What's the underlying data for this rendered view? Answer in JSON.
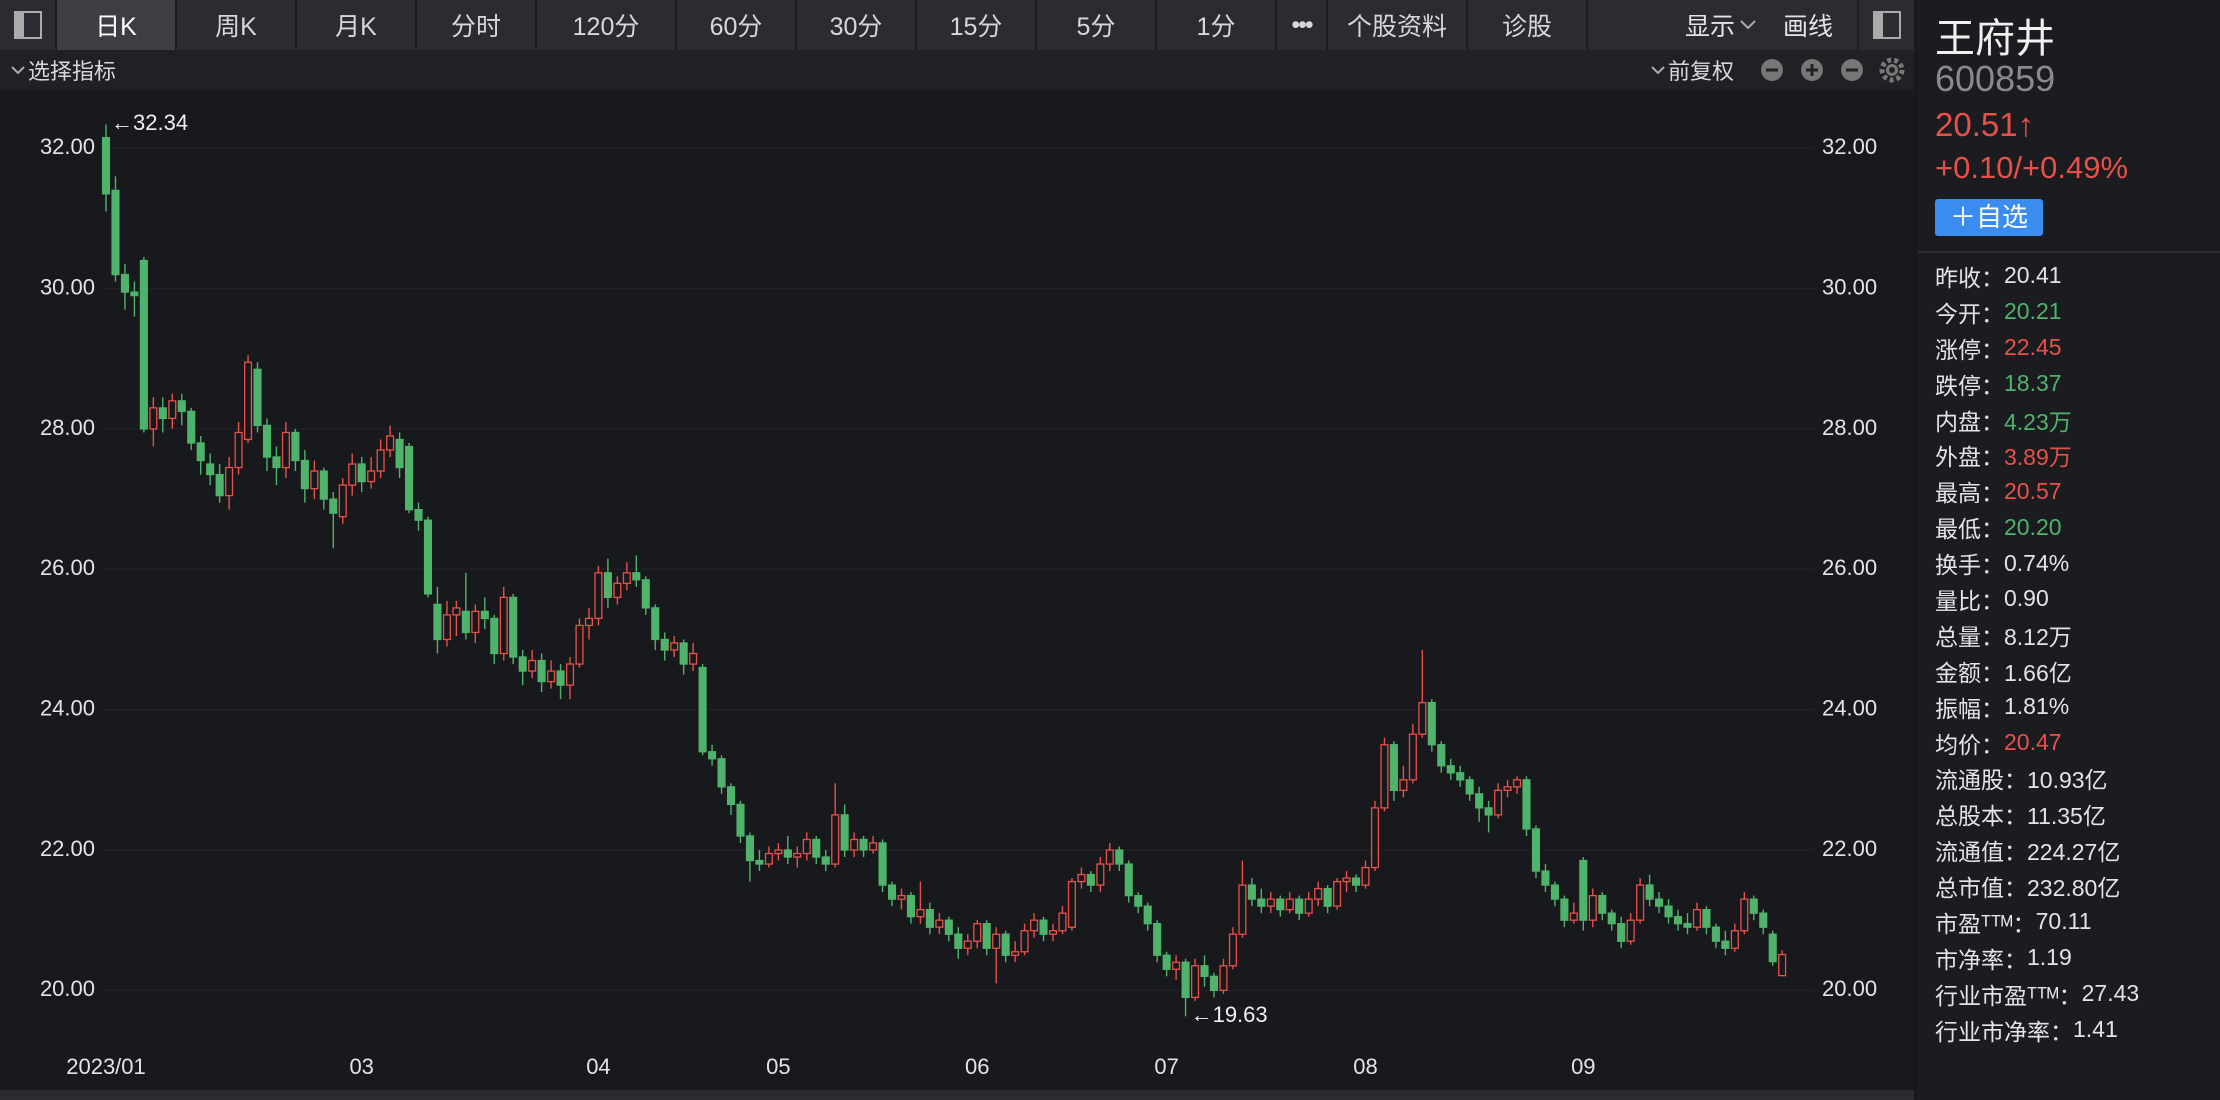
{
  "toolbar": {
    "tabs": [
      "日K",
      "周K",
      "月K",
      "分时",
      "120分",
      "60分",
      "30分",
      "15分",
      "5分",
      "1分",
      "•••",
      "个股资料",
      "诊股"
    ],
    "selected": 0,
    "display": "显示",
    "draw": "画线"
  },
  "subbar": {
    "indicator": "选择指标",
    "adjust": "前复权"
  },
  "quote": {
    "name": "王府井",
    "code": "600859",
    "price": "20.51↑",
    "change": "+0.10/+0.49%",
    "watch": "＋自选",
    "rows": [
      {
        "label": "昨收：",
        "value": "20.41",
        "color": "#e4e4e6"
      },
      {
        "label": "今开：",
        "value": "20.21",
        "color": "#4fb36c"
      },
      {
        "label": "涨停：",
        "value": "22.45",
        "color": "#e8504a"
      },
      {
        "label": "跌停：",
        "value": "18.37",
        "color": "#4fb36c"
      },
      {
        "label": "内盘：",
        "value": "4.23万",
        "color": "#4fb36c"
      },
      {
        "label": "外盘：",
        "value": "3.89万",
        "color": "#e8504a"
      },
      {
        "label": "最高：",
        "value": "20.57",
        "color": "#e8504a"
      },
      {
        "label": "最低：",
        "value": "20.20",
        "color": "#4fb36c"
      },
      {
        "label": "换手：",
        "value": "0.74%",
        "color": "#e4e4e6"
      },
      {
        "label": "量比：",
        "value": "0.90",
        "color": "#e4e4e6"
      },
      {
        "label": "总量：",
        "value": "8.12万",
        "color": "#e4e4e6"
      },
      {
        "label": "金额：",
        "value": "1.66亿",
        "color": "#e4e4e6"
      },
      {
        "label": "振幅：",
        "value": "1.81%",
        "color": "#e4e4e6"
      },
      {
        "label": "均价：",
        "value": "20.47",
        "color": "#e8504a"
      },
      {
        "label": "流通股：",
        "value": "10.93亿",
        "color": "#e4e4e6"
      },
      {
        "label": "总股本：",
        "value": "11.35亿",
        "color": "#e4e4e6"
      },
      {
        "label": "流通值：",
        "value": "224.27亿",
        "color": "#e4e4e6"
      },
      {
        "label": "总市值：",
        "value": "232.80亿",
        "color": "#e4e4e6"
      },
      {
        "label": "市盈ᵀᵀᴹ：",
        "value": "70.11",
        "color": "#e4e4e6"
      },
      {
        "label": "市净率：",
        "value": "1.19",
        "color": "#e4e4e6"
      },
      {
        "label": "行业市盈ᵀᵀᴹ：",
        "value": "27.43",
        "color": "#e4e4e6"
      },
      {
        "label": "行业市净率：",
        "value": "1.41",
        "color": "#e4e4e6"
      }
    ]
  },
  "chart_data": {
    "type": "candlestick",
    "up_color": "#e8504a",
    "down_color": "#4fb36c",
    "grid": true,
    "ylim": [
      19.15,
      32.83
    ],
    "yticks": [
      {
        "value": 20,
        "label": "20.00"
      },
      {
        "value": 22,
        "label": "22.00"
      },
      {
        "value": 24,
        "label": "24.00"
      },
      {
        "value": 26,
        "label": "26.00"
      },
      {
        "value": 28,
        "label": "28.00"
      },
      {
        "value": 30,
        "label": "30.00"
      },
      {
        "value": 32,
        "label": "32.00"
      }
    ],
    "high_label": "←32.34",
    "low_label": "←19.63",
    "categories": [
      "2023/01",
      null,
      null,
      null,
      null,
      null,
      null,
      null,
      null,
      null,
      null,
      null,
      null,
      null,
      null,
      null,
      null,
      null,
      null,
      null,
      null,
      null,
      null,
      null,
      null,
      null,
      null,
      "03",
      null,
      null,
      null,
      null,
      null,
      null,
      null,
      null,
      null,
      null,
      null,
      null,
      null,
      null,
      null,
      null,
      null,
      null,
      null,
      null,
      null,
      null,
      null,
      null,
      "04",
      null,
      null,
      null,
      null,
      null,
      null,
      null,
      null,
      null,
      null,
      null,
      null,
      null,
      null,
      null,
      null,
      null,
      null,
      "05",
      null,
      null,
      null,
      null,
      null,
      null,
      null,
      null,
      null,
      null,
      null,
      null,
      null,
      null,
      null,
      null,
      null,
      null,
      null,
      null,
      "06",
      null,
      null,
      null,
      null,
      null,
      null,
      null,
      null,
      null,
      null,
      null,
      null,
      null,
      null,
      null,
      null,
      null,
      null,
      null,
      "07",
      null,
      null,
      null,
      null,
      null,
      null,
      null,
      null,
      null,
      null,
      null,
      null,
      null,
      null,
      null,
      null,
      null,
      null,
      null,
      null,
      "08",
      null,
      null,
      null,
      null,
      null,
      null,
      null,
      null,
      null,
      null,
      null,
      null,
      null,
      null,
      null,
      null,
      null,
      null,
      null,
      null,
      null,
      null,
      "09",
      null,
      null,
      null,
      null,
      null,
      null,
      null,
      null,
      null,
      null,
      null,
      null,
      null,
      null,
      null,
      null,
      null
    ],
    "ohlc": [
      [
        32.15,
        32.34,
        31.1,
        31.35
      ],
      [
        31.4,
        31.6,
        30.1,
        30.2
      ],
      [
        30.2,
        30.35,
        29.7,
        29.95
      ],
      [
        29.95,
        30.1,
        29.6,
        29.9
      ],
      [
        30.4,
        30.45,
        27.95,
        28.0
      ],
      [
        28.0,
        28.45,
        27.75,
        28.3
      ],
      [
        28.3,
        28.45,
        27.95,
        28.15
      ],
      [
        28.15,
        28.5,
        28.0,
        28.4
      ],
      [
        28.4,
        28.5,
        28.05,
        28.25
      ],
      [
        28.25,
        28.3,
        27.7,
        27.8
      ],
      [
        27.8,
        27.9,
        27.35,
        27.55
      ],
      [
        27.5,
        27.65,
        27.2,
        27.35
      ],
      [
        27.35,
        27.5,
        26.95,
        27.05
      ],
      [
        27.05,
        27.6,
        26.85,
        27.45
      ],
      [
        27.45,
        28.1,
        27.35,
        27.95
      ],
      [
        27.85,
        29.05,
        27.8,
        28.95
      ],
      [
        28.85,
        28.95,
        27.95,
        28.05
      ],
      [
        28.05,
        28.15,
        27.4,
        27.6
      ],
      [
        27.6,
        27.75,
        27.2,
        27.45
      ],
      [
        27.45,
        28.1,
        27.3,
        27.95
      ],
      [
        27.95,
        28.0,
        27.4,
        27.55
      ],
      [
        27.55,
        27.7,
        26.95,
        27.15
      ],
      [
        27.15,
        27.55,
        27.0,
        27.4
      ],
      [
        27.4,
        27.45,
        26.85,
        27.0
      ],
      [
        27.0,
        27.1,
        26.3,
        26.8
      ],
      [
        26.75,
        27.3,
        26.65,
        27.2
      ],
      [
        27.2,
        27.65,
        27.05,
        27.5
      ],
      [
        27.5,
        27.6,
        27.1,
        27.25
      ],
      [
        27.25,
        27.6,
        27.15,
        27.4
      ],
      [
        27.4,
        27.85,
        27.3,
        27.7
      ],
      [
        27.7,
        28.05,
        27.6,
        27.9
      ],
      [
        27.85,
        27.95,
        27.3,
        27.45
      ],
      [
        27.75,
        27.8,
        26.8,
        26.85
      ],
      [
        26.85,
        26.95,
        26.55,
        26.7
      ],
      [
        26.7,
        26.75,
        25.6,
        25.65
      ],
      [
        25.5,
        25.75,
        24.8,
        25.0
      ],
      [
        25.0,
        25.55,
        24.9,
        25.35
      ],
      [
        25.35,
        25.55,
        25.05,
        25.45
      ],
      [
        25.4,
        25.95,
        25.0,
        25.1
      ],
      [
        25.1,
        25.5,
        24.95,
        25.4
      ],
      [
        25.4,
        25.6,
        25.15,
        25.3
      ],
      [
        25.3,
        25.35,
        24.65,
        24.8
      ],
      [
        24.8,
        25.75,
        24.7,
        25.6
      ],
      [
        25.6,
        25.65,
        24.65,
        24.75
      ],
      [
        24.75,
        24.85,
        24.35,
        24.55
      ],
      [
        24.55,
        24.85,
        24.45,
        24.7
      ],
      [
        24.7,
        24.8,
        24.25,
        24.4
      ],
      [
        24.4,
        24.7,
        24.3,
        24.55
      ],
      [
        24.55,
        24.65,
        24.15,
        24.35
      ],
      [
        24.35,
        24.75,
        24.15,
        24.65
      ],
      [
        24.65,
        25.3,
        24.6,
        25.2
      ],
      [
        25.2,
        25.45,
        25.0,
        25.3
      ],
      [
        25.3,
        26.05,
        25.2,
        25.95
      ],
      [
        25.95,
        26.15,
        25.45,
        25.6
      ],
      [
        25.6,
        25.9,
        25.5,
        25.8
      ],
      [
        25.8,
        26.1,
        25.7,
        25.95
      ],
      [
        25.95,
        26.2,
        25.75,
        25.85
      ],
      [
        25.85,
        25.9,
        25.35,
        25.45
      ],
      [
        25.45,
        25.5,
        24.85,
        25.0
      ],
      [
        25.0,
        25.1,
        24.7,
        24.85
      ],
      [
        24.85,
        25.05,
        24.75,
        24.95
      ],
      [
        24.95,
        25.0,
        24.5,
        24.65
      ],
      [
        24.65,
        24.95,
        24.55,
        24.8
      ],
      [
        24.6,
        24.65,
        23.35,
        23.4
      ],
      [
        23.4,
        23.5,
        23.2,
        23.3
      ],
      [
        23.3,
        23.35,
        22.8,
        22.9
      ],
      [
        22.9,
        22.95,
        22.5,
        22.65
      ],
      [
        22.65,
        22.7,
        22.1,
        22.2
      ],
      [
        22.2,
        22.25,
        21.55,
        21.85
      ],
      [
        21.85,
        22.0,
        21.7,
        21.8
      ],
      [
        21.8,
        22.05,
        21.75,
        21.95
      ],
      [
        21.95,
        22.1,
        21.85,
        22.0
      ],
      [
        22.0,
        22.2,
        21.8,
        21.9
      ],
      [
        21.9,
        22.05,
        21.75,
        21.95
      ],
      [
        21.95,
        22.25,
        21.85,
        22.15
      ],
      [
        22.15,
        22.2,
        21.8,
        21.9
      ],
      [
        21.9,
        22.0,
        21.7,
        21.8
      ],
      [
        21.8,
        22.95,
        21.75,
        22.5
      ],
      [
        22.5,
        22.65,
        21.9,
        22.0
      ],
      [
        22.0,
        22.25,
        21.9,
        22.15
      ],
      [
        22.15,
        22.2,
        21.9,
        22.0
      ],
      [
        22.0,
        22.2,
        21.95,
        22.1
      ],
      [
        22.1,
        22.15,
        21.4,
        21.5
      ],
      [
        21.5,
        21.55,
        21.2,
        21.3
      ],
      [
        21.3,
        21.45,
        21.15,
        21.35
      ],
      [
        21.35,
        21.4,
        20.95,
        21.05
      ],
      [
        21.05,
        21.55,
        20.95,
        21.15
      ],
      [
        21.15,
        21.25,
        20.8,
        20.9
      ],
      [
        20.9,
        21.1,
        20.8,
        21.0
      ],
      [
        21.0,
        21.05,
        20.7,
        20.8
      ],
      [
        20.8,
        20.9,
        20.45,
        20.6
      ],
      [
        20.6,
        20.8,
        20.5,
        20.7
      ],
      [
        20.7,
        21.0,
        20.6,
        20.95
      ],
      [
        20.95,
        21.0,
        20.5,
        20.6
      ],
      [
        20.6,
        20.9,
        20.1,
        20.8
      ],
      [
        20.8,
        20.85,
        20.4,
        20.5
      ],
      [
        20.5,
        20.7,
        20.4,
        20.55
      ],
      [
        20.55,
        20.95,
        20.5,
        20.85
      ],
      [
        20.85,
        21.1,
        20.75,
        21.0
      ],
      [
        21.0,
        21.05,
        20.7,
        20.8
      ],
      [
        20.8,
        20.95,
        20.7,
        20.85
      ],
      [
        20.85,
        21.2,
        20.8,
        21.1
      ],
      [
        20.9,
        21.6,
        20.85,
        21.55
      ],
      [
        21.55,
        21.75,
        21.45,
        21.65
      ],
      [
        21.65,
        21.7,
        21.4,
        21.5
      ],
      [
        21.5,
        21.9,
        21.4,
        21.8
      ],
      [
        21.8,
        22.1,
        21.7,
        22.0
      ],
      [
        22.0,
        22.05,
        21.7,
        21.8
      ],
      [
        21.8,
        21.85,
        21.25,
        21.35
      ],
      [
        21.35,
        21.4,
        21.1,
        21.2
      ],
      [
        21.2,
        21.25,
        20.85,
        20.95
      ],
      [
        20.95,
        21.0,
        20.4,
        20.5
      ],
      [
        20.5,
        20.55,
        20.2,
        20.3
      ],
      [
        20.3,
        20.5,
        20.15,
        20.4
      ],
      [
        20.4,
        20.45,
        19.63,
        19.9
      ],
      [
        19.9,
        20.45,
        19.85,
        20.35
      ],
      [
        20.35,
        20.5,
        20.05,
        20.2
      ],
      [
        20.2,
        20.25,
        19.9,
        20.0
      ],
      [
        20.0,
        20.45,
        19.95,
        20.35
      ],
      [
        20.35,
        20.9,
        20.3,
        20.8
      ],
      [
        20.8,
        21.85,
        20.75,
        21.5
      ],
      [
        21.5,
        21.6,
        21.2,
        21.3
      ],
      [
        21.3,
        21.45,
        21.1,
        21.2
      ],
      [
        21.2,
        21.4,
        21.1,
        21.3
      ],
      [
        21.3,
        21.35,
        21.05,
        21.15
      ],
      [
        21.15,
        21.4,
        21.1,
        21.3
      ],
      [
        21.3,
        21.35,
        21.0,
        21.1
      ],
      [
        21.1,
        21.4,
        21.05,
        21.3
      ],
      [
        21.3,
        21.55,
        21.2,
        21.45
      ],
      [
        21.45,
        21.5,
        21.1,
        21.2
      ],
      [
        21.2,
        21.6,
        21.15,
        21.55
      ],
      [
        21.55,
        21.7,
        21.4,
        21.6
      ],
      [
        21.6,
        21.65,
        21.4,
        21.5
      ],
      [
        21.5,
        21.85,
        21.45,
        21.75
      ],
      [
        21.75,
        22.7,
        21.7,
        22.6
      ],
      [
        22.6,
        23.6,
        22.55,
        23.5
      ],
      [
        23.5,
        23.55,
        22.7,
        22.85
      ],
      [
        22.85,
        23.2,
        22.75,
        23.0
      ],
      [
        23.0,
        23.8,
        22.95,
        23.65
      ],
      [
        23.65,
        24.85,
        23.6,
        24.1
      ],
      [
        24.1,
        24.15,
        23.4,
        23.5
      ],
      [
        23.5,
        23.55,
        23.1,
        23.2
      ],
      [
        23.2,
        23.3,
        23.0,
        23.1
      ],
      [
        23.1,
        23.2,
        22.9,
        23.0
      ],
      [
        23.0,
        23.05,
        22.7,
        22.8
      ],
      [
        22.8,
        22.9,
        22.4,
        22.6
      ],
      [
        22.6,
        22.7,
        22.25,
        22.5
      ],
      [
        22.5,
        22.95,
        22.45,
        22.85
      ],
      [
        22.85,
        23.0,
        22.75,
        22.9
      ],
      [
        22.9,
        23.05,
        22.8,
        23.0
      ],
      [
        23.0,
        23.05,
        22.2,
        22.3
      ],
      [
        22.3,
        22.35,
        21.6,
        21.7
      ],
      [
        21.7,
        21.8,
        21.4,
        21.5
      ],
      [
        21.5,
        21.55,
        21.2,
        21.3
      ],
      [
        21.3,
        21.35,
        20.9,
        21.0
      ],
      [
        21.0,
        21.25,
        20.95,
        21.1
      ],
      [
        21.85,
        21.9,
        20.85,
        21.0
      ],
      [
        21.0,
        21.45,
        20.9,
        21.35
      ],
      [
        21.35,
        21.4,
        21.0,
        21.1
      ],
      [
        21.1,
        21.15,
        20.85,
        20.95
      ],
      [
        20.95,
        21.05,
        20.6,
        20.7
      ],
      [
        20.7,
        21.1,
        20.65,
        21.0
      ],
      [
        21.0,
        21.6,
        20.95,
        21.5
      ],
      [
        21.5,
        21.65,
        21.2,
        21.3
      ],
      [
        21.3,
        21.4,
        21.1,
        21.2
      ],
      [
        21.2,
        21.3,
        20.95,
        21.05
      ],
      [
        21.05,
        21.15,
        20.85,
        20.95
      ],
      [
        20.95,
        21.1,
        20.8,
        20.9
      ],
      [
        20.9,
        21.25,
        20.85,
        21.15
      ],
      [
        21.15,
        21.2,
        20.8,
        20.9
      ],
      [
        20.9,
        20.95,
        20.6,
        20.7
      ],
      [
        20.7,
        20.85,
        20.5,
        20.6
      ],
      [
        20.6,
        20.95,
        20.55,
        20.85
      ],
      [
        20.85,
        21.4,
        20.8,
        21.3
      ],
      [
        21.3,
        21.35,
        21.0,
        21.1
      ],
      [
        21.1,
        21.15,
        20.8,
        20.9
      ],
      [
        20.8,
        20.85,
        20.35,
        20.41
      ],
      [
        20.21,
        20.57,
        20.2,
        20.51
      ]
    ]
  }
}
